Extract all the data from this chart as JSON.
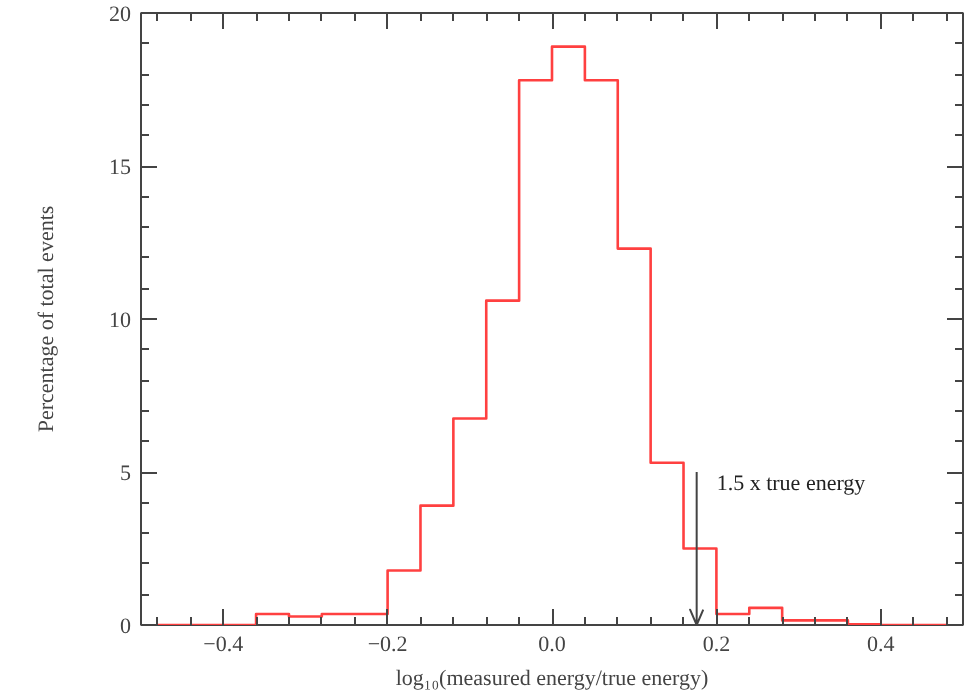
{
  "chart_data": {
    "type": "histogram",
    "xlabel": "log₁₀(measured energy/true energy)",
    "ylabel": "Percentage of total events",
    "bins": [
      -0.48,
      -0.44,
      -0.4,
      -0.36,
      -0.32,
      -0.28,
      -0.24,
      -0.2,
      -0.16,
      -0.12,
      -0.08,
      -0.04,
      0,
      0.04,
      0.08,
      0.12,
      0.16,
      0.2,
      0.24,
      0.28,
      0.32,
      0.36,
      0.4,
      0.44,
      0.48
    ],
    "values": [
      0,
      0,
      0,
      0.36,
      0.28,
      0.36,
      0.36,
      1.78,
      3.9,
      6.75,
      10.6,
      17.8,
      18.9,
      17.8,
      12.3,
      5.3,
      2.5,
      0.36,
      0.56,
      0.15,
      0.15,
      0.02,
      0,
      0
    ],
    "color": "#ff4040",
    "xlim": [
      -0.5,
      0.5
    ],
    "ylim": [
      0,
      20
    ],
    "xticks": [
      {
        "value": -0.4,
        "label": "−0.4"
      },
      {
        "value": -0.2,
        "label": "−0.2"
      },
      {
        "value": 0,
        "label": "0.0"
      },
      0.2,
      0.4
    ],
    "yticks": [
      0,
      5,
      10,
      15,
      20
    ],
    "ref_lines": [
      {
        "axis": "x",
        "value": 0.176,
        "label": "1.5 x true energy",
        "color": "#444444"
      }
    ],
    "grid": false
  }
}
